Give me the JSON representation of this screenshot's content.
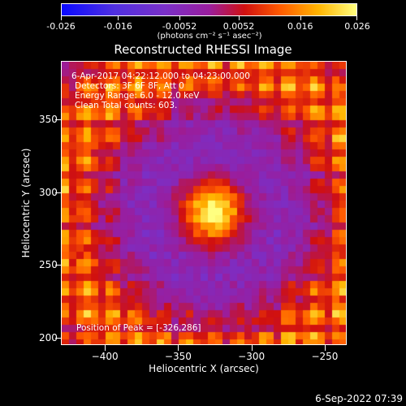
{
  "colorbar": {
    "ticks": [
      "-0.026",
      "-0.016",
      "-0.0052",
      "0.0052",
      "0.016",
      "0.026"
    ],
    "units": "(photons cm⁻² s⁻¹ asec⁻²)",
    "range": [
      -0.026,
      0.026
    ]
  },
  "title": "Reconstructed RHESSI Image",
  "info": {
    "time_range": "6-Apr-2017 04:22:12.000 to 04:23:00.000",
    "detectors": "Detectors: 3F 6F 8F, Att 0",
    "energy": "Energy Range: 6.0 - 12.0 keV",
    "clean": "Clean    Total counts: 603.",
    "peak": "Position of Peak = [-326,286]"
  },
  "timestamp": "6-Sep-2022 07:39",
  "chart_data": {
    "type": "heatmap",
    "title": "Reconstructed RHESSI Image",
    "xlabel": "Heliocentric X (arcsec)",
    "ylabel": "Heliocentric Y (arcsec)",
    "xlim": [
      -430,
      -235
    ],
    "ylim": [
      195,
      390
    ],
    "xticks": [
      -400,
      -350,
      -300,
      -250
    ],
    "yticks": [
      200,
      250,
      300,
      350
    ],
    "peak": [
      -326,
      286
    ],
    "colormap": [
      "#0a0aff",
      "#5030e0",
      "#7a30c8",
      "#9a1e9e",
      "#d01010",
      "#ff5a00",
      "#ffb400",
      "#ffff80"
    ]
  }
}
